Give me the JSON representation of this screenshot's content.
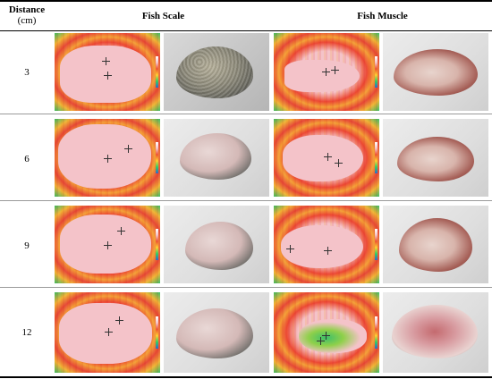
{
  "headers": {
    "distance": "Distance",
    "distance_unit": "(cm)",
    "fish_scale": "Fish Scale",
    "fish_muscle": "Fish Muscle"
  },
  "rows": [
    {
      "distance": "3"
    },
    {
      "distance": "6"
    },
    {
      "distance": "9"
    },
    {
      "distance": "12"
    }
  ],
  "icons": {
    "crosshair": "crosshair-icon",
    "thermal_image": "thermal-image",
    "fish_photo": "fish-photo"
  },
  "colors": {
    "thermal_core": "#f4c3c9",
    "thermal_hot": "#ec4a38",
    "thermal_warm": "#f3a23a",
    "thermal_cool": "#3cbf6a"
  }
}
